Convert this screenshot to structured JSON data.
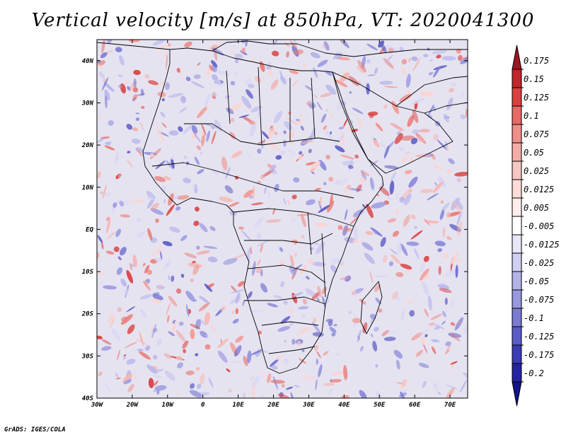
{
  "title": "Vertical velocity [m/s] at 850hPa, VT: 2020041300",
  "credit": "GrADS: IGES/COLA",
  "map": {
    "variable": "Vertical velocity",
    "units": "m/s",
    "level": "850hPa",
    "valid_time": "2020041300",
    "lon_range": [
      -30,
      75
    ],
    "lat_range": [
      -40,
      45
    ],
    "x_ticks": [
      {
        "value": -30,
        "label": "30W"
      },
      {
        "value": -20,
        "label": "20W"
      },
      {
        "value": -10,
        "label": "10W"
      },
      {
        "value": 0,
        "label": "0"
      },
      {
        "value": 10,
        "label": "10E"
      },
      {
        "value": 20,
        "label": "20E"
      },
      {
        "value": 30,
        "label": "30E"
      },
      {
        "value": 40,
        "label": "40E"
      },
      {
        "value": 50,
        "label": "50E"
      },
      {
        "value": 60,
        "label": "60E"
      },
      {
        "value": 70,
        "label": "70E"
      }
    ],
    "y_ticks": [
      {
        "value": 40,
        "label": "40N"
      },
      {
        "value": 30,
        "label": "30N"
      },
      {
        "value": 20,
        "label": "20N"
      },
      {
        "value": 10,
        "label": "10N"
      },
      {
        "value": 0,
        "label": "EQ"
      },
      {
        "value": -10,
        "label": "10S"
      },
      {
        "value": -20,
        "label": "20S"
      },
      {
        "value": -30,
        "label": "30S"
      },
      {
        "value": -40,
        "label": "40S"
      }
    ]
  },
  "colorbar": {
    "labels": [
      "0.175",
      "0.15",
      "0.125",
      "0.1",
      "0.075",
      "0.05",
      "0.025",
      "0.0125",
      "0.005",
      "-0.005",
      "-0.0125",
      "-0.025",
      "-0.05",
      "-0.075",
      "-0.1",
      "-0.125",
      "-0.175",
      "-0.2"
    ],
    "colors": [
      "#a0141e",
      "#c0262a",
      "#d9403e",
      "#e66a66",
      "#ef8f8a",
      "#f4aca6",
      "#f8c6c1",
      "#fbdcd9",
      "#fdeeec",
      "#ffffff",
      "#e7e7f8",
      "#cfcff2",
      "#b3b3ea",
      "#9898e0",
      "#7b7bd4",
      "#5c5cc6",
      "#3c3cb4",
      "#2424a0",
      "#12128a"
    ]
  }
}
